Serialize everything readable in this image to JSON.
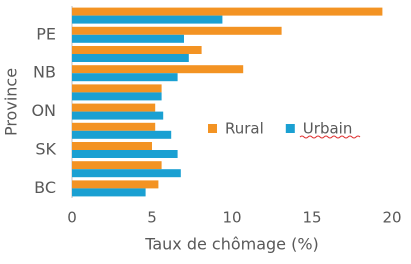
{
  "chart_data": {
    "type": "hbar",
    "x_label": "Taux de chômage (%)",
    "y_label": "Province",
    "categories": [
      null,
      "PE",
      null,
      "NB",
      null,
      "ON",
      null,
      "SK",
      null,
      "BC"
    ],
    "series": [
      {
        "name": "Rural",
        "color": "#f39323",
        "values": [
          19.4,
          13.1,
          8.1,
          10.7,
          5.6,
          5.2,
          5.2,
          5.0,
          5.6,
          5.4
        ]
      },
      {
        "name": "Urbain",
        "color": "#1aa0d2",
        "values": [
          9.4,
          7.0,
          7.3,
          6.6,
          5.6,
          5.7,
          6.2,
          6.6,
          6.8,
          4.6
        ]
      }
    ],
    "xlim": [
      0,
      20
    ],
    "xticks": [
      0,
      5,
      10,
      15,
      20
    ]
  }
}
